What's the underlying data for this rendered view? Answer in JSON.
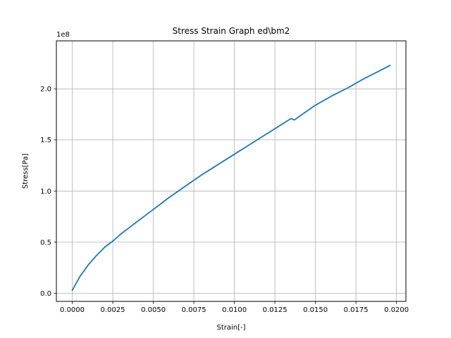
{
  "chart_data": {
    "type": "line",
    "title": "Stress Strain Graph ed\\bm2",
    "xlabel": "Strain[-]",
    "ylabel": "Stress[Pa]",
    "y_offset_text": "1e8",
    "xlim": [
      -0.00098,
      0.02058
    ],
    "ylim": [
      -8000000,
      247000000
    ],
    "grid": true,
    "x_ticks": [
      0.0,
      0.0025,
      0.005,
      0.0075,
      0.01,
      0.0125,
      0.015,
      0.0175,
      0.02
    ],
    "x_tick_labels": [
      "0.0000",
      "0.0025",
      "0.0050",
      "0.0075",
      "0.0100",
      "0.0125",
      "0.0150",
      "0.0175",
      "0.0200"
    ],
    "y_ticks": [
      0,
      50000000,
      100000000,
      150000000,
      200000000
    ],
    "y_tick_labels": [
      "0.0",
      "0.5",
      "1.0",
      "1.5",
      "2.0"
    ],
    "series": [
      {
        "color": "#1f77b4",
        "x": [
          0.0,
          0.0005,
          0.001,
          0.0015,
          0.002,
          0.0025,
          0.003,
          0.0035,
          0.004,
          0.005,
          0.006,
          0.007,
          0.008,
          0.009,
          0.01,
          0.011,
          0.012,
          0.013,
          0.0135,
          0.0137,
          0.014,
          0.015,
          0.016,
          0.017,
          0.018,
          0.019,
          0.0196
        ],
        "y": [
          3000000,
          17000000,
          28000000,
          37000000,
          45000000,
          51000000,
          58000000,
          64000000,
          70000000,
          82000000,
          94000000,
          105000000,
          116000000,
          126000000,
          136000000,
          146000000,
          156000000,
          166000000,
          171000000,
          169500000,
          173000000,
          184000000,
          193000000,
          201000000,
          210000000,
          218000000,
          223000000
        ]
      }
    ]
  }
}
